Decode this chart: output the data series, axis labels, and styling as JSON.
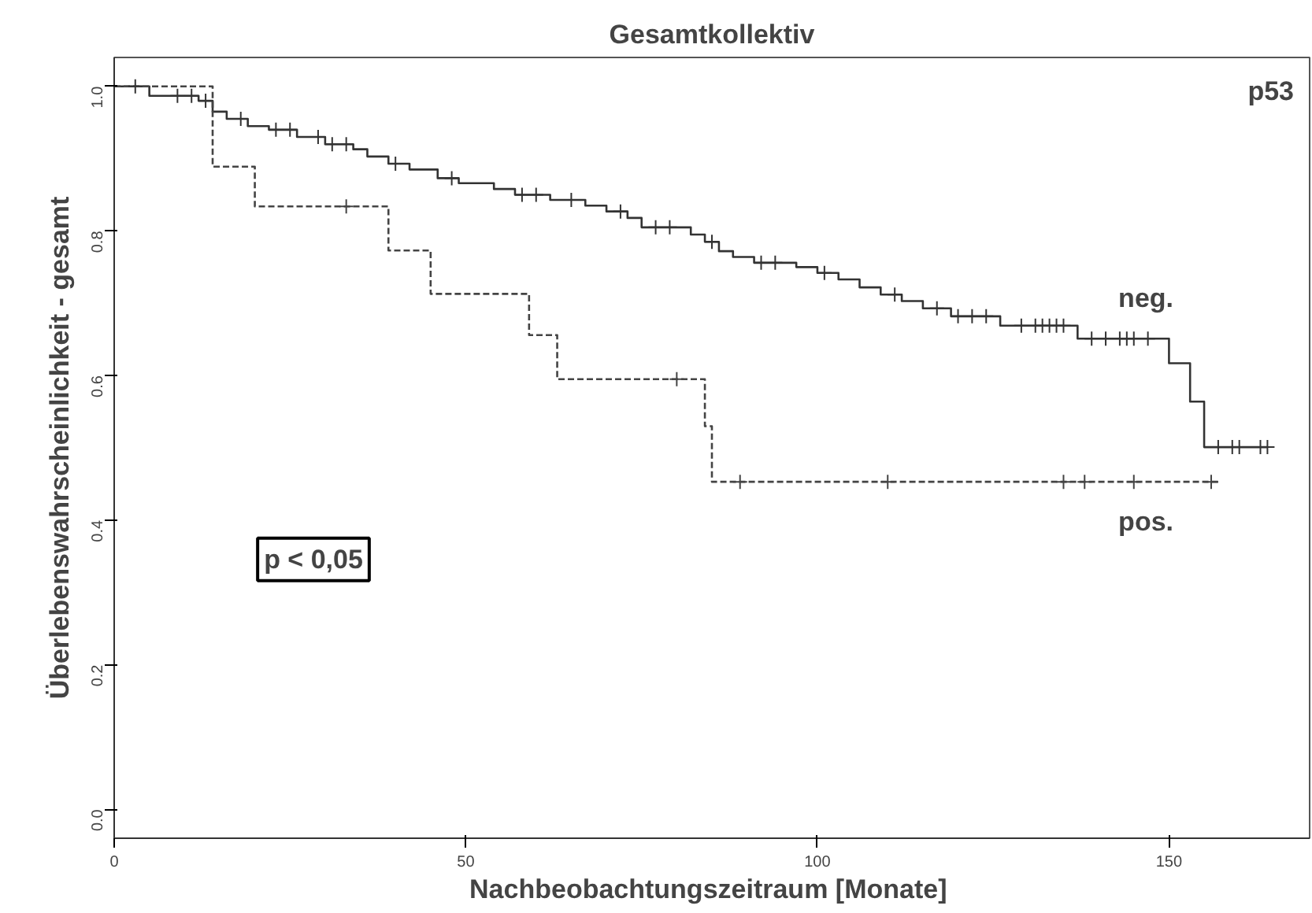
{
  "chart_data": {
    "type": "step",
    "title": "Gesamtkollektiv",
    "xlabel": "Nachbeobachtungszeitraum  [Monate]",
    "ylabel": "Überlebenswahrscheinlichkeit - gesamt",
    "annotations": [
      "p53",
      "p < 0,05"
    ],
    "xlim": [
      0,
      170
    ],
    "ylim": [
      -0.04,
      1.04
    ],
    "xticks": [
      0,
      50,
      100,
      150
    ],
    "yticks": [
      {
        "value": 0,
        "label": "0.0"
      },
      0.2,
      0.4,
      0.6,
      0.8,
      {
        "value": 1,
        "label": "1.0"
      }
    ],
    "grid": false,
    "series": [
      {
        "name": "neg.",
        "color": "#333333",
        "line_style": "solid",
        "x": [
          0,
          5,
          12,
          14,
          16,
          19,
          22,
          26,
          30,
          34,
          36,
          39,
          42,
          46,
          49,
          54,
          57,
          62,
          67,
          70,
          73,
          75,
          82,
          84,
          86,
          88,
          91,
          97,
          100,
          103,
          106,
          109,
          112,
          115,
          119,
          126,
          137,
          150,
          153,
          155,
          164
        ],
        "values": [
          1.0,
          0.987,
          0.98,
          0.965,
          0.955,
          0.945,
          0.94,
          0.93,
          0.92,
          0.913,
          0.903,
          0.893,
          0.885,
          0.873,
          0.866,
          0.858,
          0.85,
          0.843,
          0.835,
          0.827,
          0.818,
          0.805,
          0.795,
          0.785,
          0.772,
          0.764,
          0.756,
          0.75,
          0.742,
          0.733,
          0.722,
          0.712,
          0.703,
          0.693,
          0.682,
          0.669,
          0.651,
          0.617,
          0.564,
          0.501,
          0.501
        ]
      },
      {
        "name": "pos.",
        "color": "#444444",
        "line_style": "dashed",
        "x": [
          0,
          14,
          20,
          39,
          45,
          59,
          63,
          84,
          85,
          157
        ],
        "values": [
          1.0,
          0.889,
          0.834,
          0.773,
          0.713,
          0.656,
          0.595,
          0.53,
          0.453,
          0.453
        ]
      },
      {
        "type": "scatter",
        "marker": "cross",
        "color": "#333333",
        "x": [
          3,
          9,
          11,
          13,
          18,
          23,
          25,
          29,
          31,
          33,
          40,
          48,
          58,
          60,
          65,
          72,
          77,
          79,
          85,
          92,
          94,
          101,
          111,
          117,
          120,
          122,
          124,
          129,
          131,
          132,
          133,
          134,
          135,
          139,
          141,
          143,
          144,
          145,
          147,
          157,
          159,
          160,
          163,
          164
        ],
        "values": [
          1.0,
          0.987,
          0.987,
          0.98,
          0.955,
          0.94,
          0.94,
          0.93,
          0.92,
          0.92,
          0.893,
          0.873,
          0.85,
          0.85,
          0.843,
          0.827,
          0.805,
          0.805,
          0.785,
          0.756,
          0.756,
          0.742,
          0.712,
          0.693,
          0.682,
          0.682,
          0.682,
          0.669,
          0.669,
          0.669,
          0.669,
          0.669,
          0.669,
          0.651,
          0.651,
          0.651,
          0.651,
          0.651,
          0.651,
          0.501,
          0.501,
          0.501,
          0.501,
          0.501
        ]
      },
      {
        "type": "scatter",
        "marker": "cross",
        "color": "#444444",
        "x": [
          33,
          80,
          89,
          110,
          135,
          138,
          145,
          156
        ],
        "values": [
          0.834,
          0.595,
          0.453,
          0.453,
          0.453,
          0.453,
          0.453,
          0.453
        ]
      }
    ]
  }
}
